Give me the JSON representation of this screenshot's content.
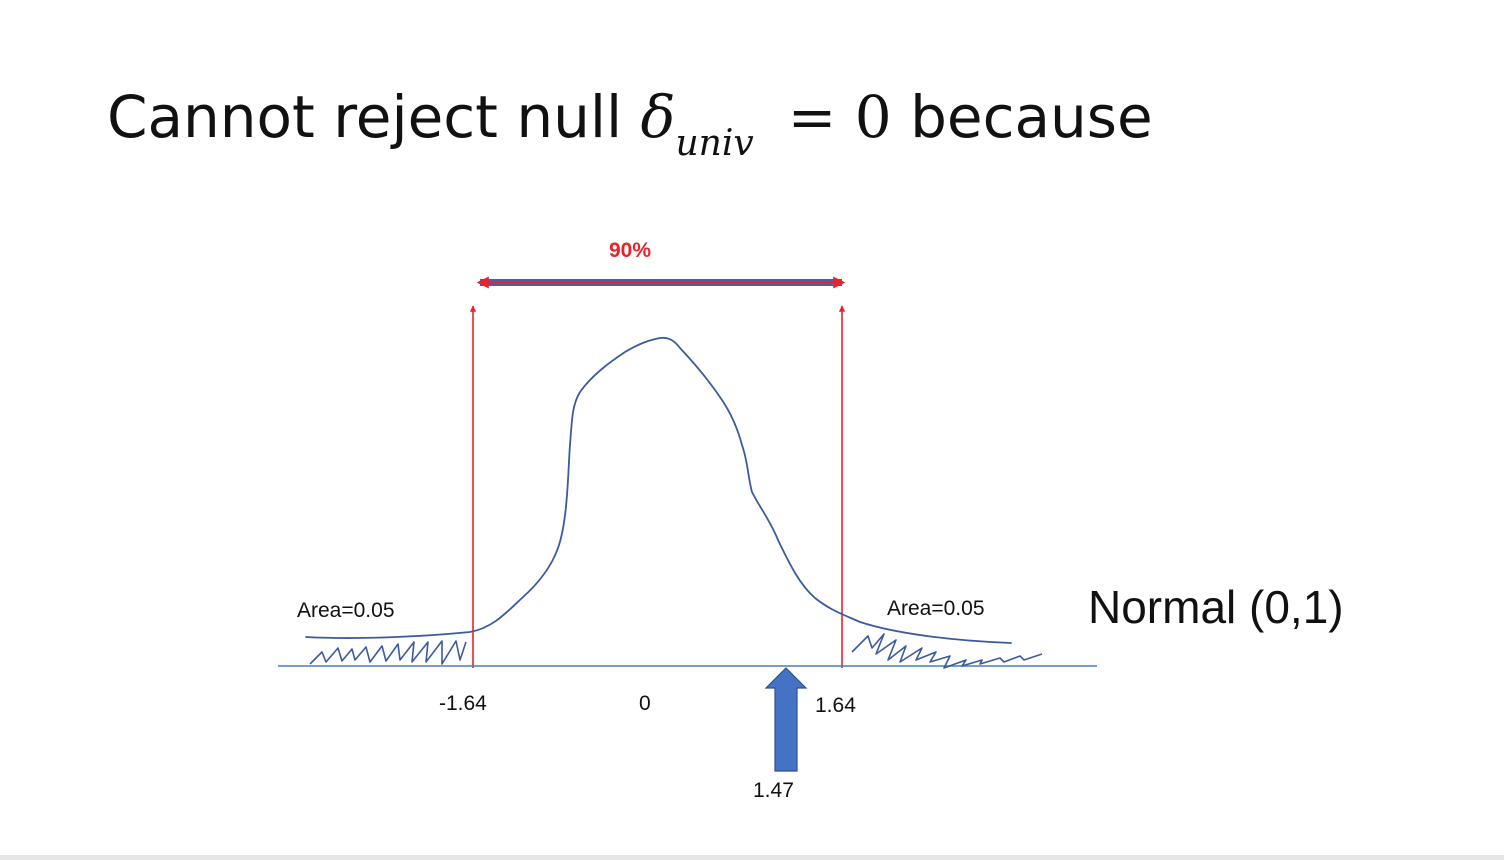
{
  "title": {
    "prefix": "Cannot reject null ",
    "symbol": "δ",
    "subscript": "univ",
    "equals": "= ",
    "value": "0",
    "suffix": " because"
  },
  "diagram": {
    "interval_label": "90%",
    "left_tail_label": "Area=0.05",
    "right_tail_label": "Area=0.05",
    "distribution_label": "Normal (0,1)",
    "ticks": {
      "left": "-1.64",
      "center": "0",
      "right": "1.64"
    },
    "statistic_label": "1.47",
    "colors": {
      "curve": "#3b5b9e",
      "critical_lines": "#e8232a",
      "axis": "#4a7bbf",
      "arrow": "#4472c4",
      "interval_bar": "#4a5fa8"
    }
  }
}
